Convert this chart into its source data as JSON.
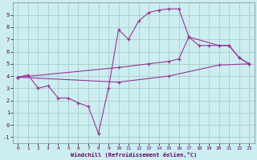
{
  "xlabel": "Windchill (Refroidissement éolien,°C)",
  "bg_color": "#cceef0",
  "grid_color": "#aacccc",
  "line_color": "#993399",
  "xlim": [
    -0.5,
    23.5
  ],
  "ylim": [
    -1.5,
    10.0
  ],
  "yticks": [
    -1,
    0,
    1,
    2,
    3,
    4,
    5,
    6,
    7,
    8,
    9
  ],
  "xticks": [
    0,
    1,
    2,
    3,
    4,
    5,
    6,
    7,
    8,
    9,
    10,
    11,
    12,
    13,
    14,
    15,
    16,
    17,
    18,
    19,
    20,
    21,
    22,
    23
  ],
  "line1_x": [
    0,
    1,
    2,
    3,
    4,
    5,
    6,
    7,
    8,
    9,
    10,
    11,
    12,
    13,
    14,
    15,
    16,
    17,
    18,
    19,
    20,
    21,
    22,
    23
  ],
  "line1_y": [
    3.9,
    4.1,
    3.0,
    3.2,
    2.2,
    2.2,
    1.8,
    1.5,
    -0.7,
    3.0,
    7.8,
    7.0,
    8.5,
    9.2,
    9.4,
    9.5,
    9.5,
    7.2,
    6.5,
    6.5,
    6.5,
    6.5,
    5.5,
    5.0
  ],
  "line2_x": [
    0,
    10,
    13,
    15,
    16,
    17,
    20,
    21,
    22,
    23
  ],
  "line2_y": [
    3.9,
    4.7,
    5.0,
    5.2,
    5.4,
    7.2,
    6.5,
    6.5,
    5.5,
    5.0
  ],
  "line3_x": [
    0,
    10,
    15,
    20,
    23
  ],
  "line3_y": [
    3.9,
    3.5,
    4.0,
    4.9,
    5.0
  ]
}
